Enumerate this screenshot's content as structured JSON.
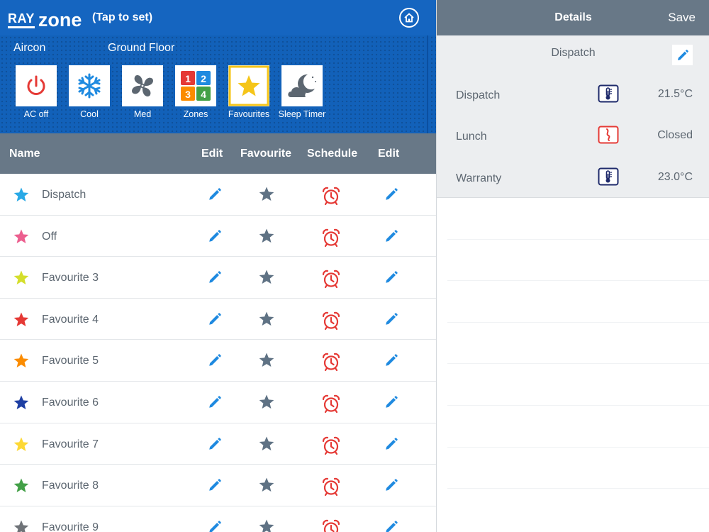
{
  "header": {
    "logo_ray": "RAY",
    "logo_zone": "zone",
    "tap_to_set": "(Tap to set)",
    "home_icon": "home-icon"
  },
  "controls": {
    "aircon_label": "Aircon",
    "floor_label": "Ground Floor",
    "buttons": [
      {
        "label": "AC off",
        "icon": "power-icon"
      },
      {
        "label": "Cool",
        "icon": "snowflake-icon"
      },
      {
        "label": "Med",
        "icon": "fan-icon"
      },
      {
        "label": "Zones",
        "icon": "zones-grid-icon"
      },
      {
        "label": "Favourites",
        "icon": "star-icon"
      },
      {
        "label": "Sleep Timer",
        "icon": "moon-cloud-icon"
      }
    ]
  },
  "table": {
    "columns": [
      "Name",
      "Edit",
      "Favourite",
      "Schedule",
      "Edit"
    ],
    "rows": [
      {
        "name": "Dispatch",
        "color": "#29a9e6"
      },
      {
        "name": "Off",
        "color": "#ec5f8f"
      },
      {
        "name": "Favourite 3",
        "color": "#d4de2b"
      },
      {
        "name": "Favourite 4",
        "color": "#e53935"
      },
      {
        "name": "Favourite 5",
        "color": "#fb8c00"
      },
      {
        "name": "Favourite 6",
        "color": "#1e3fa3"
      },
      {
        "name": "Favourite 7",
        "color": "#fdd835"
      },
      {
        "name": "Favourite 8",
        "color": "#43a047"
      },
      {
        "name": "Favourite 9",
        "color": "#6f7378"
      }
    ]
  },
  "details": {
    "title": "Details",
    "save": "Save",
    "favourite_name": "Dispatch",
    "zones": [
      {
        "name": "Dispatch",
        "icon": "thermometer-icon",
        "value": "21.5°C"
      },
      {
        "name": "Lunch",
        "icon": "damper-icon",
        "value": "Closed"
      },
      {
        "name": "Warranty",
        "icon": "thermometer-icon",
        "value": "23.0°C"
      }
    ]
  },
  "colors": {
    "brand_blue": "#1565c0",
    "header_grey": "#687887",
    "icon_blue": "#1f8ae0",
    "alarm_red": "#e53935",
    "star_grey": "#5f7284",
    "thermo_navy": "#1e2a6b"
  }
}
